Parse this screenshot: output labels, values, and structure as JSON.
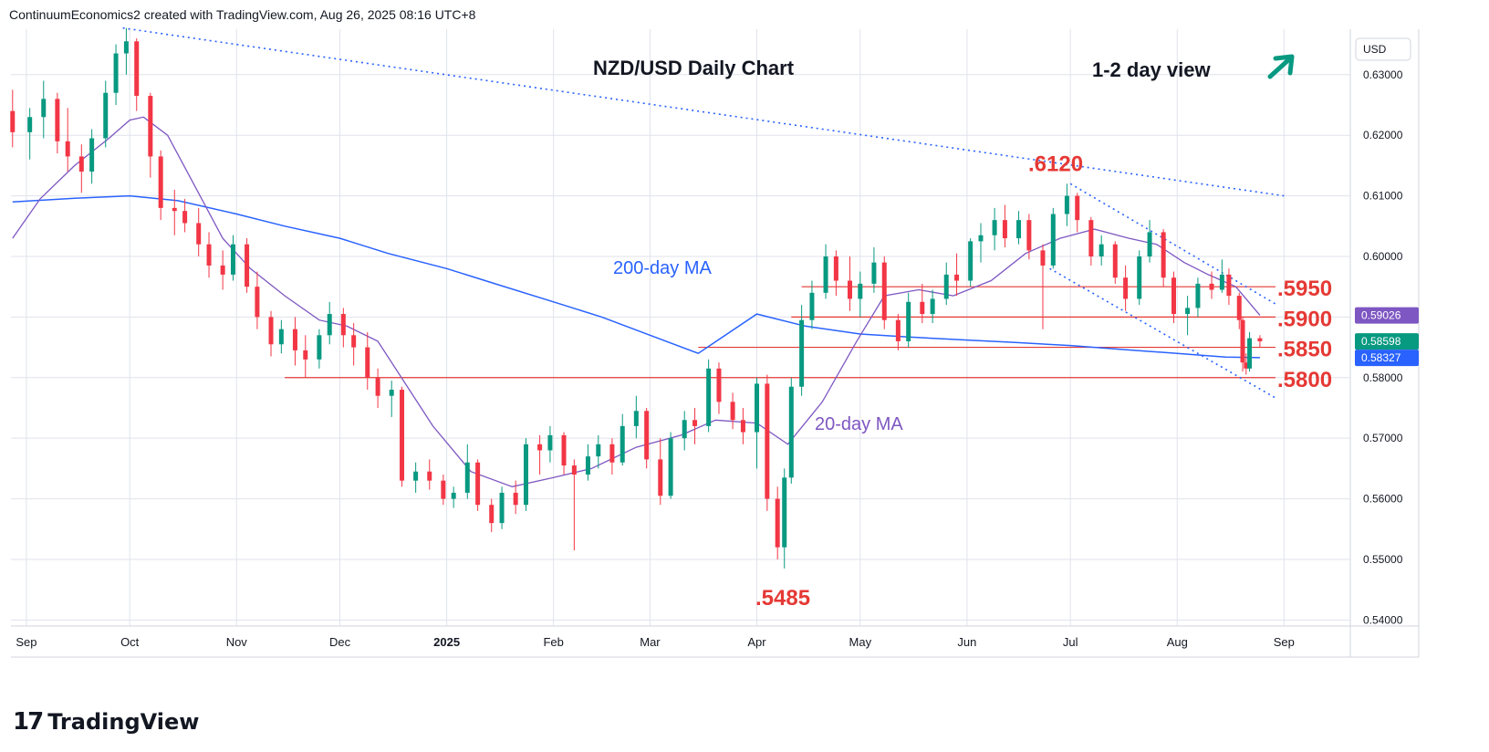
{
  "header": {
    "attribution": "ContinuumEconomics2 created with TradingView.com, Aug 26, 2025 08:16 UTC+8"
  },
  "footer": {
    "logo_text": "TradingView",
    "logo_icon": "tradingview-logo-icon"
  },
  "colors": {
    "up": "#089981",
    "down": "#f23645",
    "ma200": "#2962ff",
    "ma20": "#7e57c2",
    "level": "#e53935",
    "grid": "#e0e3eb",
    "axis_text": "#131722"
  },
  "chart_data": {
    "type": "candlestick",
    "title": "NZD/USD Daily Chart",
    "view_label": "1-2 day view",
    "view_icon": "arrow-up-right-icon",
    "currency": "USD",
    "x_tick_labels": [
      "Sep",
      "Oct",
      "Nov",
      "Dec",
      "2025",
      "Feb",
      "Mar",
      "Apr",
      "May",
      "Jun",
      "Jul",
      "Aug",
      "Sep"
    ],
    "y_tick_labels": [
      "0.63000",
      "0.62000",
      "0.61000",
      "0.60000",
      "0.59000",
      "0.58000",
      "0.57000",
      "0.56000",
      "0.55000",
      "0.54000"
    ],
    "ylim": [
      0.539,
      0.6375
    ],
    "grid": true,
    "price_badges": [
      {
        "label": "0.59026",
        "value": 0.59026,
        "color": "#7e57c2"
      },
      {
        "label": "0.58598",
        "value": 0.58598,
        "color": "#089981"
      },
      {
        "label": "0.58327",
        "value": 0.58327,
        "color": "#2962ff"
      }
    ],
    "annotations": [
      {
        "text": ".6120",
        "kind": "high",
        "value": 0.612
      },
      {
        "text": ".5485",
        "kind": "low",
        "value": 0.5485
      },
      {
        "text": "200-day MA",
        "kind": "ma-label"
      },
      {
        "text": "20-day MA",
        "kind": "ma-label"
      }
    ],
    "levels": [
      {
        "label": ".5950",
        "value": 0.595,
        "from": "2025-04-14"
      },
      {
        "label": ".5900",
        "value": 0.59,
        "from": "2025-04-11"
      },
      {
        "label": ".5850",
        "value": 0.585,
        "from": "2025-03-15"
      },
      {
        "label": ".5800",
        "value": 0.58,
        "from": "2024-11-15"
      }
    ],
    "trendlines": [
      {
        "name": "long-term-resistance",
        "from": [
          "2024-09-29",
          0.6377
        ],
        "to": [
          "2025-09-01",
          0.61
        ]
      },
      {
        "name": "channel-upper",
        "from": [
          "2025-07-01",
          0.612
        ],
        "to": [
          "2025-08-30",
          0.592
        ]
      },
      {
        "name": "channel-lower",
        "from": [
          "2025-06-25",
          0.598
        ],
        "to": [
          "2025-08-30",
          0.5765
        ]
      }
    ],
    "ma200": [
      [
        "2024-08-28",
        0.609
      ],
      [
        "2024-09-15",
        0.6096
      ],
      [
        "2024-10-01",
        0.61
      ],
      [
        "2024-10-15",
        0.6092
      ],
      [
        "2024-11-01",
        0.607
      ],
      [
        "2024-11-15",
        0.605
      ],
      [
        "2024-12-01",
        0.603
      ],
      [
        "2024-12-15",
        0.6005
      ],
      [
        "2025-01-01",
        0.598
      ],
      [
        "2025-01-15",
        0.5955
      ],
      [
        "2025-02-01",
        0.5925
      ],
      [
        "2025-02-15",
        0.59
      ],
      [
        "2025-03-01",
        0.587
      ],
      [
        "2025-03-15",
        0.584
      ],
      [
        "2025-04-01",
        0.5905
      ],
      [
        "2025-04-15",
        0.5885
      ],
      [
        "2025-05-01",
        0.5872
      ],
      [
        "2025-05-15",
        0.5867
      ],
      [
        "2025-06-01",
        0.5862
      ],
      [
        "2025-06-15",
        0.5858
      ],
      [
        "2025-07-01",
        0.5853
      ],
      [
        "2025-07-15",
        0.5847
      ],
      [
        "2025-08-01",
        0.584
      ],
      [
        "2025-08-15",
        0.5834
      ],
      [
        "2025-08-25",
        0.5833
      ]
    ],
    "ma20": [
      [
        "2024-08-28",
        0.603
      ],
      [
        "2024-09-05",
        0.6095
      ],
      [
        "2024-09-15",
        0.615
      ],
      [
        "2024-09-25",
        0.6195
      ],
      [
        "2024-10-01",
        0.6225
      ],
      [
        "2024-10-05",
        0.623
      ],
      [
        "2024-10-12",
        0.62
      ],
      [
        "2024-10-20",
        0.6115
      ],
      [
        "2024-10-28",
        0.603
      ],
      [
        "2024-11-05",
        0.598
      ],
      [
        "2024-11-15",
        0.5935
      ],
      [
        "2024-11-25",
        0.5895
      ],
      [
        "2024-12-03",
        0.5885
      ],
      [
        "2024-12-12",
        0.586
      ],
      [
        "2024-12-20",
        0.579
      ],
      [
        "2024-12-28",
        0.572
      ],
      [
        "2025-01-08",
        0.5645
      ],
      [
        "2025-01-20",
        0.562
      ],
      [
        "2025-02-01",
        0.5635
      ],
      [
        "2025-02-12",
        0.565
      ],
      [
        "2025-02-25",
        0.5685
      ],
      [
        "2025-03-10",
        0.5705
      ],
      [
        "2025-03-20",
        0.573
      ],
      [
        "2025-04-01",
        0.5725
      ],
      [
        "2025-04-10",
        0.569
      ],
      [
        "2025-04-20",
        0.576
      ],
      [
        "2025-04-30",
        0.586
      ],
      [
        "2025-05-08",
        0.5935
      ],
      [
        "2025-05-18",
        0.5945
      ],
      [
        "2025-05-28",
        0.5935
      ],
      [
        "2025-06-08",
        0.596
      ],
      [
        "2025-06-18",
        0.6005
      ],
      [
        "2025-06-28",
        0.603
      ],
      [
        "2025-07-08",
        0.6045
      ],
      [
        "2025-07-18",
        0.603
      ],
      [
        "2025-07-26",
        0.602
      ],
      [
        "2025-08-03",
        0.599
      ],
      [
        "2025-08-10",
        0.597
      ],
      [
        "2025-08-18",
        0.595
      ],
      [
        "2025-08-25",
        0.5903
      ]
    ],
    "ohlc": [
      [
        "2024-08-28",
        0.624,
        0.6275,
        0.618,
        0.6205
      ],
      [
        "2024-09-02",
        0.6205,
        0.6245,
        0.616,
        0.623
      ],
      [
        "2024-09-06",
        0.623,
        0.629,
        0.6195,
        0.626
      ],
      [
        "2024-09-10",
        0.626,
        0.627,
        0.617,
        0.619
      ],
      [
        "2024-09-13",
        0.619,
        0.6245,
        0.614,
        0.6165
      ],
      [
        "2024-09-17",
        0.6165,
        0.6185,
        0.6105,
        0.614
      ],
      [
        "2024-09-20",
        0.614,
        0.621,
        0.612,
        0.6195
      ],
      [
        "2024-09-24",
        0.6195,
        0.629,
        0.618,
        0.627
      ],
      [
        "2024-09-27",
        0.627,
        0.635,
        0.625,
        0.6335
      ],
      [
        "2024-09-30",
        0.6335,
        0.6377,
        0.63,
        0.6355
      ],
      [
        "2024-10-03",
        0.6355,
        0.636,
        0.624,
        0.6265
      ],
      [
        "2024-10-07",
        0.6265,
        0.627,
        0.613,
        0.6165
      ],
      [
        "2024-10-10",
        0.6165,
        0.6175,
        0.606,
        0.608
      ],
      [
        "2024-10-14",
        0.608,
        0.611,
        0.6035,
        0.6075
      ],
      [
        "2024-10-17",
        0.6075,
        0.6095,
        0.604,
        0.6055
      ],
      [
        "2024-10-21",
        0.6055,
        0.608,
        0.6,
        0.602
      ],
      [
        "2024-10-24",
        0.602,
        0.604,
        0.5965,
        0.5985
      ],
      [
        "2024-10-28",
        0.5985,
        0.601,
        0.5945,
        0.597
      ],
      [
        "2024-10-31",
        0.597,
        0.6035,
        0.596,
        0.602
      ],
      [
        "2024-11-04",
        0.602,
        0.603,
        0.594,
        0.595
      ],
      [
        "2024-11-07",
        0.595,
        0.5975,
        0.588,
        0.59
      ],
      [
        "2024-11-11",
        0.59,
        0.591,
        0.5835,
        0.5855
      ],
      [
        "2024-11-14",
        0.5855,
        0.5895,
        0.584,
        0.588
      ],
      [
        "2024-11-18",
        0.588,
        0.59,
        0.582,
        0.5845
      ],
      [
        "2024-11-21",
        0.5845,
        0.587,
        0.58,
        0.583
      ],
      [
        "2024-11-25",
        0.583,
        0.588,
        0.5815,
        0.587
      ],
      [
        "2024-11-28",
        0.587,
        0.5925,
        0.5855,
        0.5905
      ],
      [
        "2024-12-02",
        0.5905,
        0.5915,
        0.585,
        0.587
      ],
      [
        "2024-12-05",
        0.587,
        0.589,
        0.582,
        0.585
      ],
      [
        "2024-12-09",
        0.585,
        0.5875,
        0.578,
        0.58
      ],
      [
        "2024-12-12",
        0.58,
        0.5815,
        0.575,
        0.577
      ],
      [
        "2024-12-16",
        0.577,
        0.5795,
        0.5735,
        0.578
      ],
      [
        "2024-12-19",
        0.578,
        0.5785,
        0.562,
        0.563
      ],
      [
        "2024-12-23",
        0.563,
        0.566,
        0.561,
        0.5645
      ],
      [
        "2024-12-27",
        0.5645,
        0.5665,
        0.5615,
        0.563
      ],
      [
        "2024-12-31",
        0.563,
        0.564,
        0.559,
        0.56
      ],
      [
        "2025-01-03",
        0.56,
        0.562,
        0.5585,
        0.561
      ],
      [
        "2025-01-07",
        0.561,
        0.569,
        0.56,
        0.566
      ],
      [
        "2025-01-10",
        0.566,
        0.5665,
        0.558,
        0.559
      ],
      [
        "2025-01-14",
        0.559,
        0.56,
        0.5545,
        0.556
      ],
      [
        "2025-01-17",
        0.556,
        0.562,
        0.555,
        0.561
      ],
      [
        "2025-01-21",
        0.561,
        0.563,
        0.5575,
        0.559
      ],
      [
        "2025-01-24",
        0.559,
        0.57,
        0.558,
        0.569
      ],
      [
        "2025-01-28",
        0.569,
        0.5705,
        0.564,
        0.568
      ],
      [
        "2025-01-31",
        0.568,
        0.572,
        0.566,
        0.5705
      ],
      [
        "2025-02-04",
        0.5705,
        0.571,
        0.564,
        0.5655
      ],
      [
        "2025-02-07",
        0.5655,
        0.5665,
        0.5515,
        0.564
      ],
      [
        "2025-02-11",
        0.564,
        0.569,
        0.563,
        0.567
      ],
      [
        "2025-02-14",
        0.567,
        0.5705,
        0.565,
        0.569
      ],
      [
        "2025-02-18",
        0.569,
        0.57,
        0.564,
        0.566
      ],
      [
        "2025-02-21",
        0.566,
        0.574,
        0.5655,
        0.572
      ],
      [
        "2025-02-25",
        0.572,
        0.577,
        0.57,
        0.5745
      ],
      [
        "2025-02-28",
        0.5745,
        0.575,
        0.565,
        0.5665
      ],
      [
        "2025-03-04",
        0.5665,
        0.57,
        0.559,
        0.5605
      ],
      [
        "2025-03-07",
        0.5605,
        0.571,
        0.56,
        0.57
      ],
      [
        "2025-03-11",
        0.57,
        0.5745,
        0.568,
        0.573
      ],
      [
        "2025-03-14",
        0.573,
        0.575,
        0.569,
        0.572
      ],
      [
        "2025-03-18",
        0.572,
        0.583,
        0.571,
        0.5815
      ],
      [
        "2025-03-21",
        0.5815,
        0.5825,
        0.574,
        0.576
      ],
      [
        "2025-03-25",
        0.576,
        0.5775,
        0.5715,
        0.573
      ],
      [
        "2025-03-28",
        0.573,
        0.575,
        0.569,
        0.571
      ],
      [
        "2025-04-01",
        0.571,
        0.58,
        0.565,
        0.579
      ],
      [
        "2025-04-04",
        0.579,
        0.5805,
        0.558,
        0.56
      ],
      [
        "2025-04-07",
        0.56,
        0.562,
        0.55,
        0.552
      ],
      [
        "2025-04-09",
        0.552,
        0.565,
        0.5485,
        0.5635
      ],
      [
        "2025-04-11",
        0.5635,
        0.58,
        0.5625,
        0.5785
      ],
      [
        "2025-04-14",
        0.5785,
        0.592,
        0.577,
        0.5895
      ],
      [
        "2025-04-17",
        0.5895,
        0.596,
        0.588,
        0.594
      ],
      [
        "2025-04-21",
        0.594,
        0.602,
        0.593,
        0.6
      ],
      [
        "2025-04-24",
        0.6,
        0.601,
        0.5935,
        0.596
      ],
      [
        "2025-04-28",
        0.596,
        0.6,
        0.591,
        0.593
      ],
      [
        "2025-05-01",
        0.593,
        0.5975,
        0.59,
        0.5955
      ],
      [
        "2025-05-05",
        0.5955,
        0.6015,
        0.594,
        0.599
      ],
      [
        "2025-05-08",
        0.599,
        0.6,
        0.588,
        0.5895
      ],
      [
        "2025-05-12",
        0.5895,
        0.5905,
        0.5845,
        0.586
      ],
      [
        "2025-05-15",
        0.586,
        0.594,
        0.585,
        0.5925
      ],
      [
        "2025-05-19",
        0.5925,
        0.5955,
        0.589,
        0.5905
      ],
      [
        "2025-05-22",
        0.5905,
        0.5945,
        0.589,
        0.593
      ],
      [
        "2025-05-26",
        0.593,
        0.599,
        0.592,
        0.597
      ],
      [
        "2025-05-29",
        0.597,
        0.6005,
        0.5935,
        0.596
      ],
      [
        "2025-06-02",
        0.596,
        0.603,
        0.595,
        0.6025
      ],
      [
        "2025-06-05",
        0.6025,
        0.6055,
        0.599,
        0.6035
      ],
      [
        "2025-06-09",
        0.6035,
        0.608,
        0.601,
        0.606
      ],
      [
        "2025-06-12",
        0.606,
        0.6085,
        0.6015,
        0.603
      ],
      [
        "2025-06-16",
        0.603,
        0.6075,
        0.602,
        0.606
      ],
      [
        "2025-06-19",
        0.606,
        0.607,
        0.5995,
        0.601
      ],
      [
        "2025-06-23",
        0.601,
        0.602,
        0.588,
        0.5985
      ],
      [
        "2025-06-26",
        0.5985,
        0.608,
        0.598,
        0.607
      ],
      [
        "2025-06-30",
        0.607,
        0.612,
        0.605,
        0.61
      ],
      [
        "2025-07-03",
        0.61,
        0.6105,
        0.604,
        0.606
      ],
      [
        "2025-07-07",
        0.606,
        0.6065,
        0.5985,
        0.6
      ],
      [
        "2025-07-10",
        0.6,
        0.6035,
        0.5985,
        0.602
      ],
      [
        "2025-07-14",
        0.602,
        0.6025,
        0.5955,
        0.5965
      ],
      [
        "2025-07-17",
        0.5965,
        0.5985,
        0.591,
        0.593
      ],
      [
        "2025-07-21",
        0.593,
        0.601,
        0.592,
        0.6
      ],
      [
        "2025-07-24",
        0.6,
        0.606,
        0.599,
        0.604
      ],
      [
        "2025-07-28",
        0.604,
        0.6045,
        0.595,
        0.5965
      ],
      [
        "2025-07-31",
        0.5965,
        0.5975,
        0.589,
        0.5905
      ],
      [
        "2025-08-04",
        0.5905,
        0.5935,
        0.587,
        0.5915
      ],
      [
        "2025-08-07",
        0.5915,
        0.5965,
        0.59,
        0.5955
      ],
      [
        "2025-08-11",
        0.5955,
        0.5975,
        0.593,
        0.5945
      ],
      [
        "2025-08-14",
        0.5945,
        0.5995,
        0.594,
        0.597
      ],
      [
        "2025-08-16",
        0.597,
        0.598,
        0.592,
        0.5935
      ],
      [
        "2025-08-19",
        0.5935,
        0.594,
        0.588,
        0.5895
      ],
      [
        "2025-08-20",
        0.5895,
        0.59,
        0.581,
        0.5825
      ],
      [
        "2025-08-21",
        0.5825,
        0.584,
        0.5805,
        0.5815
      ],
      [
        "2025-08-22",
        0.5815,
        0.5875,
        0.581,
        0.5865
      ],
      [
        "2025-08-25",
        0.5865,
        0.587,
        0.585,
        0.586
      ]
    ]
  }
}
